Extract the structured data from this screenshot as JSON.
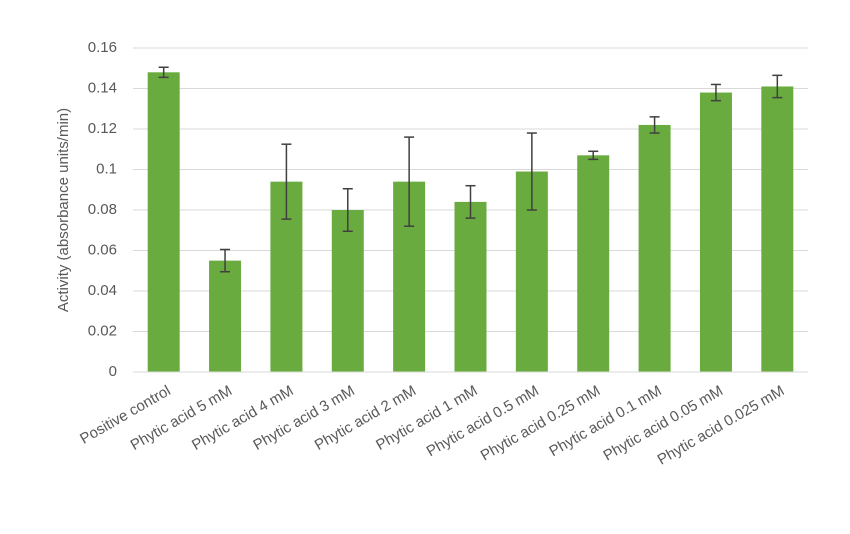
{
  "chart_data": {
    "type": "bar",
    "y_label": "Activity (absorbance units/min)",
    "categories": [
      "Positive control",
      "Phytic acid 5 mM",
      "Phytic acid 4 mM",
      "Phytic acid 3 mM",
      "Phytic acid 2 mM",
      "Phytic acid 1 mM",
      "Phytic acid 0.5 mM",
      "Phytic acid 0.25 mM",
      "Phytic acid 0.1 mM",
      "Phytic acid 0.05 mM",
      "Phytic acid 0.025 mM"
    ],
    "values": [
      0.148,
      0.055,
      0.094,
      0.08,
      0.094,
      0.084,
      0.099,
      0.107,
      0.122,
      0.138,
      0.141
    ],
    "errors": [
      0.0025,
      0.0055,
      0.0185,
      0.0105,
      0.022,
      0.008,
      0.019,
      0.002,
      0.004,
      0.004,
      0.0055
    ],
    "color": "#6aab3f",
    "ylim": [
      0,
      0.16
    ],
    "yticks": [
      0,
      0.02,
      0.04,
      0.06,
      0.08,
      0.1,
      0.12,
      0.14,
      0.16
    ],
    "grid": true
  }
}
